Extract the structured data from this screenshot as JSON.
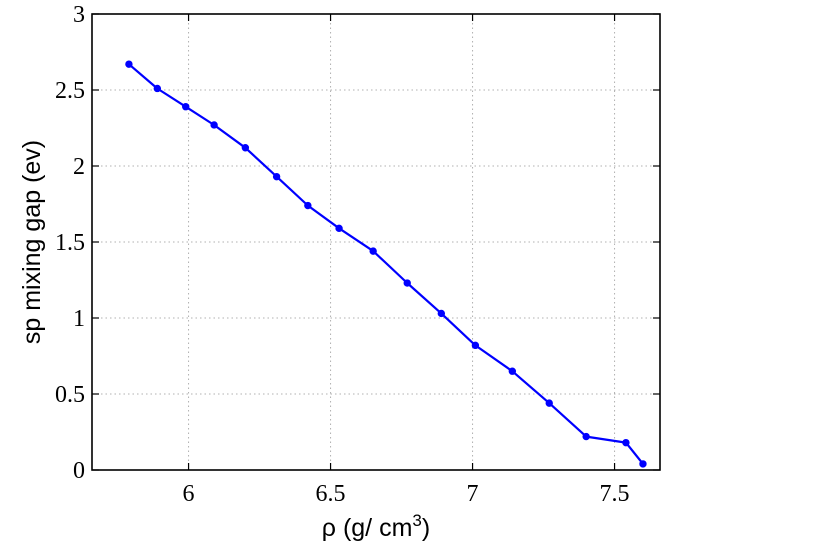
{
  "chart_data": {
    "type": "line",
    "title": "",
    "xlabel": "ρ (g/ cm",
    "xlabel_sup": "3",
    "xlabel_close": ")",
    "ylabel": "sp mixing gap (ev)",
    "xlim": [
      5.66,
      7.66
    ],
    "ylim": [
      0,
      3
    ],
    "xticks": [
      6,
      6.5,
      7,
      7.5
    ],
    "xtick_labels": [
      "6",
      "6.5",
      "7",
      "7.5"
    ],
    "yticks": [
      0,
      0.5,
      1,
      1.5,
      2,
      2.5,
      3
    ],
    "ytick_labels": [
      "0",
      "0.5",
      "1",
      "1.5",
      "2",
      "2.5",
      "3"
    ],
    "grid": true,
    "legend": "none",
    "colors": {
      "series": "#0000ff",
      "grid": "#b0b0b0",
      "frame": "#000000"
    },
    "series": [
      {
        "x": [
          5.79,
          5.89,
          5.99,
          6.09,
          6.2,
          6.31,
          6.42,
          6.53,
          6.65,
          6.77,
          6.89,
          7.01,
          7.14,
          7.27,
          7.4,
          7.54,
          7.6
        ],
        "y": [
          2.67,
          2.51,
          2.39,
          2.27,
          2.12,
          1.93,
          1.74,
          1.59,
          1.44,
          1.23,
          1.03,
          0.82,
          0.65,
          0.44,
          0.22,
          0.18,
          0.04
        ]
      }
    ]
  }
}
